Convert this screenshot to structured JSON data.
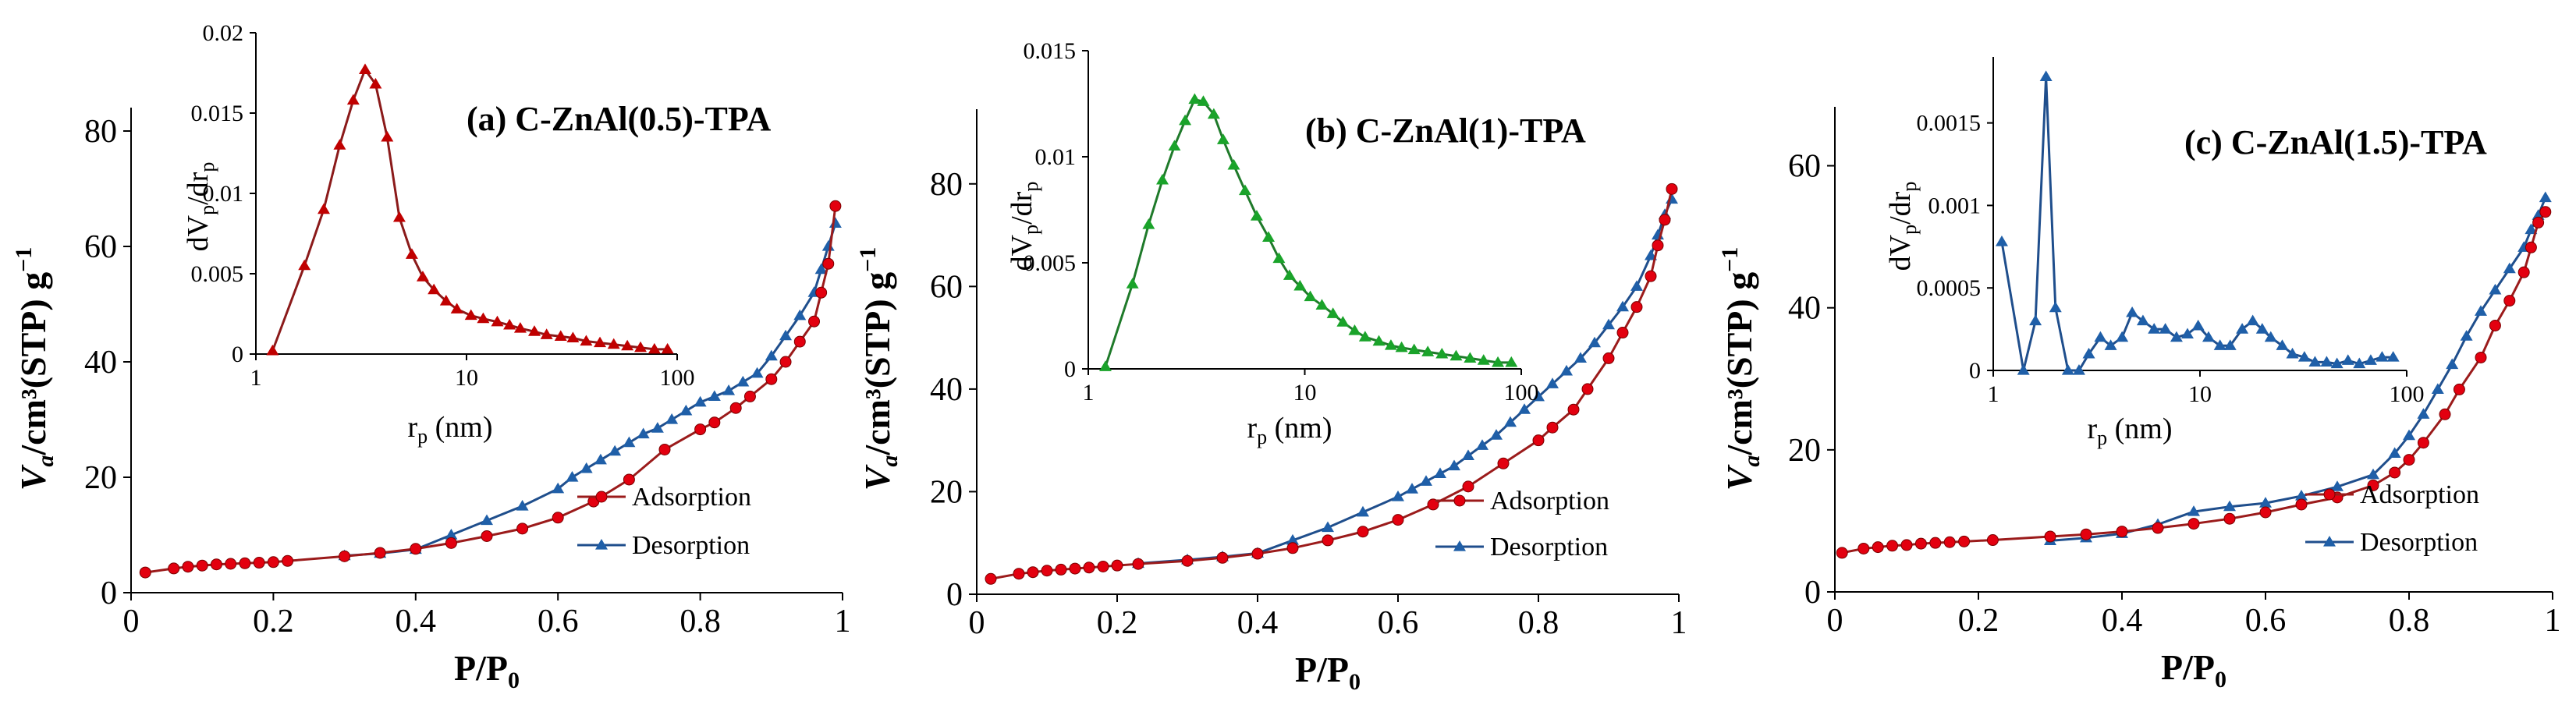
{
  "figure": {
    "main_xlabel": "P/P",
    "main_xlabel_sub": "0",
    "main_ylabel_v": "V",
    "main_ylabel_a": "a",
    "main_ylabel_rest": "/cm³(STP) g",
    "main_ylabel_sup": "−1",
    "inset_xlabel": "r",
    "inset_xlabel_sub": "p",
    "inset_xlabel_unit": " (nm)",
    "inset_ylabel": "dV",
    "inset_ylabel_sub1": "p",
    "inset_ylabel_mid": "/dr",
    "inset_ylabel_sub2": "p",
    "legend_adsorption": "Adsorption",
    "legend_desorption": "Desorption"
  },
  "colors": {
    "adsorption": "#e3000f",
    "adsorption_line": "#9b1b1b",
    "desorption": "#1f5fa8",
    "desorption_line": "#1f4e8c",
    "inset_a": "#c00000",
    "inset_a_line": "#8b1a1a",
    "inset_b": "#1aa32a",
    "inset_b_line": "#1f7a2a",
    "inset_c": "#1f5fa8",
    "inset_c_line": "#1f4e8c"
  },
  "chart_data": [
    {
      "id": "a",
      "type": "line",
      "title": "(a) C-ZnAl(0.5)-TPA",
      "xlabel": "P/P0",
      "ylabel": "Va/cm3(STP) g-1",
      "xlim": [
        0,
        1
      ],
      "ylim": [
        0,
        80
      ],
      "xticks": [
        0,
        0.2,
        0.4,
        0.6,
        0.8,
        1
      ],
      "xtick_labels": [
        "0",
        "0.2",
        "0.4",
        "0.6",
        "0.8",
        "1"
      ],
      "yticks": [
        0,
        20,
        40,
        60,
        80
      ],
      "ytick_labels": [
        "0",
        "20",
        "40",
        "60",
        "80"
      ],
      "series": [
        {
          "name": "Adsorption",
          "x": [
            0.02,
            0.06,
            0.08,
            0.1,
            0.12,
            0.14,
            0.16,
            0.18,
            0.2,
            0.22,
            0.3,
            0.35,
            0.4,
            0.45,
            0.5,
            0.55,
            0.6,
            0.65,
            0.7,
            0.75,
            0.8,
            0.82,
            0.85,
            0.87,
            0.9,
            0.92,
            0.94,
            0.96,
            0.97,
            0.98,
            0.99
          ],
          "y": [
            3.5,
            4.2,
            4.5,
            4.7,
            4.9,
            5.0,
            5.1,
            5.2,
            5.3,
            5.5,
            6.3,
            6.9,
            7.6,
            8.6,
            9.8,
            11.1,
            13.0,
            15.8,
            19.6,
            24.8,
            28.3,
            29.5,
            32.0,
            34.0,
            37.0,
            40.0,
            43.5,
            47.0,
            52.0,
            57.0,
            67.0
          ]
        },
        {
          "name": "Desorption",
          "x": [
            0.99,
            0.98,
            0.97,
            0.96,
            0.94,
            0.92,
            0.9,
            0.88,
            0.86,
            0.84,
            0.82,
            0.8,
            0.78,
            0.76,
            0.74,
            0.72,
            0.7,
            0.68,
            0.66,
            0.64,
            0.62,
            0.6,
            0.55,
            0.5,
            0.45,
            0.4,
            0.35,
            0.3
          ],
          "y": [
            64.0,
            60.0,
            56.0,
            52.0,
            48.0,
            44.5,
            41.0,
            38.0,
            36.5,
            35.0,
            34.0,
            33.0,
            31.5,
            30.0,
            28.5,
            27.5,
            26.0,
            24.5,
            23.0,
            21.5,
            20.0,
            18.0,
            15.0,
            12.5,
            10.0,
            7.5,
            6.8,
            6.4
          ]
        }
      ],
      "legend": "bottom-right",
      "inset": {
        "type": "line",
        "xscale": "log",
        "xlim": [
          1,
          100
        ],
        "ylim": [
          0,
          0.02
        ],
        "xticks": [
          1,
          10,
          100
        ],
        "xtick_labels": [
          "1",
          "10",
          "100"
        ],
        "yticks": [
          0,
          0.005,
          0.01,
          0.015,
          0.02
        ],
        "ytick_labels": [
          "0",
          "0.005",
          "0.01",
          "0.015",
          "0.02"
        ],
        "x": [
          1.2,
          1.7,
          2.1,
          2.5,
          2.9,
          3.3,
          3.7,
          4.2,
          4.8,
          5.5,
          6.2,
          7.0,
          8.0,
          9.0,
          10.5,
          12,
          14,
          16,
          18,
          21,
          24,
          28,
          32,
          37,
          43,
          50,
          58,
          67,
          78,
          90
        ],
        "y": [
          0.0002,
          0.0055,
          0.009,
          0.013,
          0.0158,
          0.0177,
          0.0168,
          0.0135,
          0.0085,
          0.0062,
          0.0048,
          0.004,
          0.0033,
          0.0028,
          0.0024,
          0.0022,
          0.002,
          0.0018,
          0.0016,
          0.0014,
          0.0012,
          0.0011,
          0.001,
          0.0008,
          0.0007,
          0.0006,
          0.0005,
          0.0004,
          0.0003,
          0.0003
        ]
      }
    },
    {
      "id": "b",
      "type": "line",
      "title": "(b) C-ZnAl(1)-TPA",
      "xlabel": "P/P0",
      "ylabel": "Va/cm3(STP) g-1",
      "xlim": [
        0,
        1
      ],
      "ylim": [
        0,
        90
      ],
      "xticks": [
        0,
        0.2,
        0.4,
        0.6,
        0.8,
        1
      ],
      "xtick_labels": [
        "0",
        "0.2",
        "0.4",
        "0.6",
        "0.8",
        "1"
      ],
      "yticks": [
        0,
        20,
        40,
        60,
        80
      ],
      "ytick_labels": [
        "0",
        "20",
        "40",
        "60",
        "80"
      ],
      "series": [
        {
          "name": "Adsorption",
          "x": [
            0.02,
            0.06,
            0.08,
            0.1,
            0.12,
            0.14,
            0.16,
            0.18,
            0.2,
            0.23,
            0.3,
            0.35,
            0.4,
            0.45,
            0.5,
            0.55,
            0.6,
            0.65,
            0.7,
            0.75,
            0.8,
            0.82,
            0.85,
            0.87,
            0.9,
            0.92,
            0.94,
            0.96,
            0.97,
            0.98,
            0.99
          ],
          "y": [
            3.0,
            4.0,
            4.3,
            4.6,
            4.8,
            5.0,
            5.2,
            5.4,
            5.6,
            5.9,
            6.5,
            7.1,
            7.9,
            9.0,
            10.5,
            12.2,
            14.5,
            17.5,
            21.0,
            25.5,
            30.0,
            32.5,
            36.0,
            40.0,
            46.0,
            51.0,
            56.0,
            62.0,
            68.0,
            73.0,
            79.0
          ]
        },
        {
          "name": "Desorption",
          "x": [
            0.99,
            0.98,
            0.97,
            0.96,
            0.94,
            0.92,
            0.9,
            0.88,
            0.86,
            0.84,
            0.82,
            0.8,
            0.78,
            0.76,
            0.74,
            0.72,
            0.7,
            0.68,
            0.66,
            0.64,
            0.62,
            0.6,
            0.55,
            0.5,
            0.45,
            0.4,
            0.35,
            0.3,
            0.23
          ],
          "y": [
            77.0,
            74.0,
            70.0,
            66.0,
            60.0,
            56.0,
            52.5,
            49.0,
            46.0,
            43.5,
            41.0,
            38.5,
            36.0,
            33.5,
            31.0,
            29.0,
            27.0,
            25.0,
            23.5,
            22.0,
            20.5,
            19.0,
            16.0,
            13.0,
            10.5,
            8.0,
            7.3,
            6.7,
            6.0
          ]
        }
      ],
      "legend": "bottom-right",
      "inset": {
        "type": "line",
        "xscale": "log",
        "xlim": [
          1,
          100
        ],
        "ylim": [
          0,
          0.015
        ],
        "xticks": [
          1,
          10,
          100
        ],
        "xtick_labels": [
          "1",
          "10",
          "100"
        ],
        "yticks": [
          0,
          0.005,
          0.01,
          0.015
        ],
        "ytick_labels": [
          "0",
          "0.005",
          "0.01",
          "0.015"
        ],
        "x": [
          1.2,
          1.6,
          1.9,
          2.2,
          2.5,
          2.8,
          3.1,
          3.4,
          3.8,
          4.2,
          4.7,
          5.3,
          6.0,
          6.8,
          7.6,
          8.5,
          9.5,
          10.6,
          12,
          13.5,
          15,
          17,
          19,
          22,
          25,
          28,
          32,
          37,
          43,
          50,
          58,
          67,
          78,
          90
        ],
        "y": [
          0.0001,
          0.004,
          0.0068,
          0.0089,
          0.0105,
          0.0117,
          0.0127,
          0.0126,
          0.012,
          0.0108,
          0.0096,
          0.0084,
          0.0072,
          0.0062,
          0.0052,
          0.0044,
          0.0039,
          0.0034,
          0.003,
          0.0026,
          0.0022,
          0.0018,
          0.0015,
          0.0013,
          0.0011,
          0.001,
          0.0009,
          0.0008,
          0.0007,
          0.0006,
          0.0005,
          0.0004,
          0.0003,
          0.0003
        ]
      }
    },
    {
      "id": "c",
      "type": "line",
      "title": "(c) C-ZnAl(1.5)-TPA",
      "xlabel": "P/P0",
      "ylabel": "Va/cm3(STP) g-1",
      "xlim": [
        0,
        1
      ],
      "ylim": [
        0,
        65
      ],
      "xticks": [
        0,
        0.2,
        0.4,
        0.6,
        0.8,
        1
      ],
      "xtick_labels": [
        "0",
        "0.2",
        "0.4",
        "0.6",
        "0.8",
        "1"
      ],
      "yticks": [
        0,
        20,
        40,
        60
      ],
      "ytick_labels": [
        "0",
        "20",
        "40",
        "60"
      ],
      "series": [
        {
          "name": "Adsorption",
          "x": [
            0.01,
            0.04,
            0.06,
            0.08,
            0.1,
            0.12,
            0.14,
            0.16,
            0.18,
            0.22,
            0.3,
            0.35,
            0.4,
            0.45,
            0.5,
            0.55,
            0.6,
            0.65,
            0.7,
            0.75,
            0.78,
            0.8,
            0.82,
            0.85,
            0.87,
            0.9,
            0.92,
            0.94,
            0.96,
            0.97,
            0.98,
            0.99
          ],
          "y": [
            5.5,
            6.1,
            6.3,
            6.5,
            6.6,
            6.8,
            6.9,
            7.0,
            7.1,
            7.3,
            7.8,
            8.1,
            8.5,
            9.0,
            9.6,
            10.3,
            11.2,
            12.3,
            13.3,
            15.0,
            16.8,
            18.6,
            21.0,
            25.0,
            28.5,
            33.0,
            37.5,
            41.0,
            45.0,
            48.5,
            52.0,
            53.5
          ]
        },
        {
          "name": "Desorption",
          "x": [
            0.99,
            0.98,
            0.97,
            0.96,
            0.94,
            0.92,
            0.9,
            0.88,
            0.86,
            0.84,
            0.82,
            0.8,
            0.78,
            0.75,
            0.7,
            0.65,
            0.6,
            0.55,
            0.5,
            0.45,
            0.4,
            0.35,
            0.3
          ],
          "y": [
            55.5,
            53.0,
            51.0,
            48.5,
            45.5,
            42.5,
            39.5,
            36.0,
            32.0,
            28.5,
            25.0,
            22.0,
            19.5,
            16.5,
            14.8,
            13.5,
            12.5,
            12.0,
            11.3,
            9.5,
            8.2,
            7.6,
            7.2
          ]
        }
      ],
      "legend": "bottom-right",
      "inset": {
        "type": "line",
        "xscale": "log",
        "xlim": [
          1,
          100
        ],
        "ylim": [
          0,
          0.0019
        ],
        "xticks": [
          1,
          10,
          100
        ],
        "xtick_labels": [
          "1",
          "10",
          "100"
        ],
        "yticks": [
          0,
          0.0005,
          0.001,
          0.0015
        ],
        "ytick_labels": [
          "0",
          "0.0005",
          "0.001",
          "0.0015"
        ],
        "x": [
          1.1,
          1.4,
          1.6,
          1.8,
          2.0,
          2.3,
          2.6,
          2.9,
          3.3,
          3.7,
          4.2,
          4.7,
          5.3,
          6.0,
          6.8,
          7.7,
          8.7,
          9.8,
          11,
          12.5,
          14,
          16,
          18,
          20,
          22,
          25,
          28,
          32,
          36,
          41,
          46,
          52,
          59,
          67,
          76,
          86
        ],
        "y": [
          0.00078,
          0.0,
          0.0003,
          0.00178,
          0.00038,
          0.0,
          0.0,
          0.0001,
          0.0002,
          0.00015,
          0.0002,
          0.00035,
          0.0003,
          0.00025,
          0.00025,
          0.0002,
          0.00022,
          0.00027,
          0.0002,
          0.00015,
          0.00015,
          0.00025,
          0.0003,
          0.00025,
          0.0002,
          0.00015,
          0.0001,
          8e-05,
          5e-05,
          5e-05,
          4e-05,
          6e-05,
          4e-05,
          6e-05,
          8e-05,
          8e-05
        ]
      }
    }
  ]
}
